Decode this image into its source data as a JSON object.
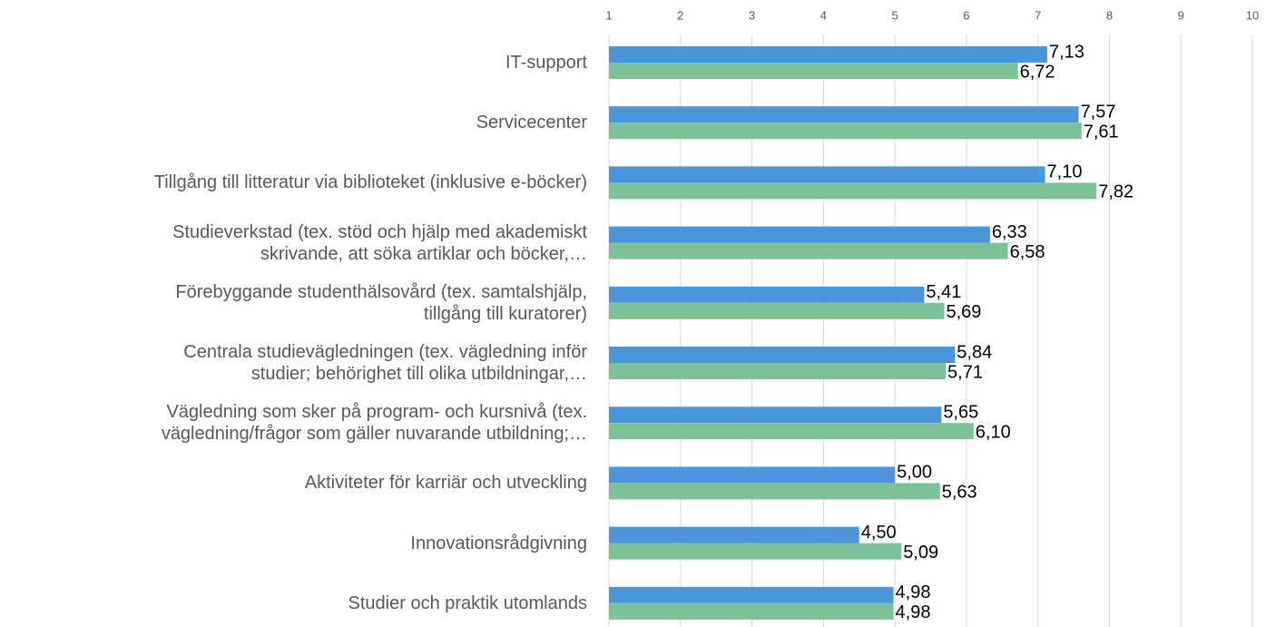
{
  "chart_data": {
    "type": "bar",
    "orientation": "horizontal",
    "categories": [
      "IT-support",
      "Servicecenter",
      "Tillgång till litteratur via biblioteket (inklusive e-böcker)",
      "Studieverkstad (tex. stöd och hjälp med akademiskt\nskrivande, att söka artiklar och böcker,…",
      "Förebyggande studenthälsovård (tex. samtalshjälp,\ntillgång till kuratorer)",
      "Centrala studievägledningen (tex. vägledning inför\nstudier; behörighet till olika utbildningar,…",
      "Vägledning som sker på program- och kursnivå (tex.\nvägledning/frågor som gäller nuvarande utbildning;…",
      "Aktiviteter för karriär och utveckling",
      "Innovationsrådgivning",
      "Studier och praktik utomlands"
    ],
    "series": [
      {
        "color": "#4a96dc",
        "values": [
          7.13,
          7.57,
          7.1,
          6.33,
          5.41,
          5.84,
          5.65,
          5.0,
          4.5,
          4.98
        ],
        "value_labels": [
          "7,13",
          "7,57",
          "7,10",
          "6,33",
          "5,41",
          "5,84",
          "5,65",
          "5,00",
          "4,50",
          "4,98"
        ]
      },
      {
        "color": "#7cc296",
        "values": [
          6.72,
          7.61,
          7.82,
          6.58,
          5.69,
          5.71,
          6.1,
          5.63,
          5.09,
          4.98
        ],
        "value_labels": [
          "6,72",
          "7,61",
          "7,82",
          "6,58",
          "5,69",
          "5,71",
          "6,10",
          "5,63",
          "5,09",
          "4,98"
        ]
      }
    ],
    "xlim": [
      1,
      10
    ],
    "xticks": [
      1,
      2,
      3,
      4,
      5,
      6,
      7,
      8,
      9,
      10
    ],
    "grid": true,
    "xaxis_position": "top"
  }
}
